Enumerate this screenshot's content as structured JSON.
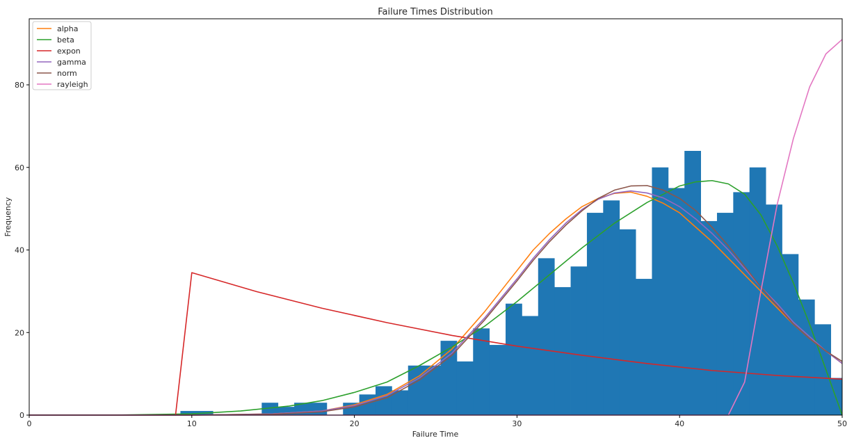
{
  "chart_data": {
    "type": "bar",
    "title": "Failure Times Distribution",
    "xlabel": "Failure Time",
    "ylabel": "Frequency",
    "xlim": [
      0,
      50
    ],
    "ylim": [
      0,
      96
    ],
    "grid": false,
    "legend_placement": "top-left",
    "x_ticks": [
      "0",
      "10",
      "20",
      "30",
      "40",
      "50"
    ],
    "y_ticks": [
      "0",
      "20",
      "40",
      "60",
      "80"
    ],
    "histogram": {
      "color": "#1f77b4",
      "bins": [
        {
          "x0": 9.3,
          "x1": 11.3,
          "count": 1
        },
        {
          "x0": 14.3,
          "x1": 15.3,
          "count": 3
        },
        {
          "x0": 15.3,
          "x1": 16.3,
          "count": 2
        },
        {
          "x0": 16.3,
          "x1": 18.3,
          "count": 3
        },
        {
          "x0": 19.3,
          "x1": 20.3,
          "count": 3
        },
        {
          "x0": 20.3,
          "x1": 21.3,
          "count": 5
        },
        {
          "x0": 21.3,
          "x1": 22.3,
          "count": 7
        },
        {
          "x0": 22.3,
          "x1": 23.3,
          "count": 6
        },
        {
          "x0": 23.3,
          "x1": 25.3,
          "count": 12
        },
        {
          "x0": 25.3,
          "x1": 26.3,
          "count": 18
        },
        {
          "x0": 26.3,
          "x1": 27.3,
          "count": 13
        },
        {
          "x0": 27.3,
          "x1": 28.3,
          "count": 21
        },
        {
          "x0": 28.3,
          "x1": 29.3,
          "count": 17
        },
        {
          "x0": 29.3,
          "x1": 30.3,
          "count": 27
        },
        {
          "x0": 30.3,
          "x1": 31.3,
          "count": 24
        },
        {
          "x0": 31.3,
          "x1": 32.3,
          "count": 38
        },
        {
          "x0": 32.3,
          "x1": 33.3,
          "count": 31
        },
        {
          "x0": 33.3,
          "x1": 34.3,
          "count": 36
        },
        {
          "x0": 34.3,
          "x1": 35.3,
          "count": 49
        },
        {
          "x0": 35.3,
          "x1": 36.3,
          "count": 52
        },
        {
          "x0": 36.3,
          "x1": 37.3,
          "count": 45
        },
        {
          "x0": 37.3,
          "x1": 38.3,
          "count": 33
        },
        {
          "x0": 38.3,
          "x1": 39.3,
          "count": 60
        },
        {
          "x0": 39.3,
          "x1": 40.3,
          "count": 55
        },
        {
          "x0": 40.3,
          "x1": 41.3,
          "count": 64
        },
        {
          "x0": 41.3,
          "x1": 42.3,
          "count": 47
        },
        {
          "x0": 42.3,
          "x1": 43.3,
          "count": 49
        },
        {
          "x0": 43.3,
          "x1": 44.3,
          "count": 54
        },
        {
          "x0": 44.3,
          "x1": 45.3,
          "count": 60
        },
        {
          "x0": 45.3,
          "x1": 46.3,
          "count": 51
        },
        {
          "x0": 46.3,
          "x1": 47.3,
          "count": 39
        },
        {
          "x0": 47.3,
          "x1": 48.3,
          "count": 28
        },
        {
          "x0": 48.3,
          "x1": 49.3,
          "count": 22
        },
        {
          "x0": 49.3,
          "x1": 50.0,
          "count": 9
        }
      ]
    },
    "series": [
      {
        "name": "alpha",
        "color": "#ff7f0e",
        "x": [
          0,
          10,
          15,
          18,
          20,
          22,
          24,
          26,
          28,
          30,
          31,
          32,
          33,
          34,
          35,
          36,
          37,
          38,
          39,
          40,
          41,
          42,
          43,
          44,
          45,
          46,
          47,
          48,
          49,
          50
        ],
        "y": [
          0,
          0,
          0.3,
          1,
          2.5,
          5,
          9.5,
          16,
          25,
          35,
          40,
          44,
          47.5,
          50.5,
          52.5,
          53.7,
          54,
          53,
          51.3,
          49,
          45.5,
          42,
          38,
          34,
          30,
          26,
          22,
          18.5,
          15.5,
          12.5
        ]
      },
      {
        "name": "beta",
        "color": "#2ca02c",
        "x": [
          0,
          5,
          10,
          13,
          16,
          18,
          20,
          22,
          24,
          26,
          28,
          30,
          32,
          34,
          36,
          38,
          40,
          41,
          42,
          43,
          44,
          45,
          46,
          47,
          48,
          49,
          50
        ],
        "y": [
          0,
          0,
          0.3,
          1,
          2.2,
          3.5,
          5.5,
          8,
          12,
          16.5,
          21.5,
          27.5,
          34,
          40.5,
          46.5,
          51.5,
          55.5,
          56.5,
          56.8,
          56,
          53.5,
          48.5,
          41,
          32,
          22,
          11,
          0
        ]
      },
      {
        "name": "expon",
        "color": "#d62728",
        "x": [
          0,
          9,
          10,
          14,
          18,
          22,
          26,
          30,
          34,
          38,
          42,
          46,
          50
        ],
        "y": [
          0,
          0,
          34.5,
          29.9,
          25.9,
          22.4,
          19.3,
          16.7,
          14.5,
          12.5,
          10.8,
          9.6,
          8.7
        ]
      },
      {
        "name": "gamma",
        "color": "#9467bd",
        "x": [
          0,
          10,
          15,
          18,
          20,
          22,
          24,
          26,
          28,
          30,
          31,
          32,
          33,
          34,
          35,
          36,
          37,
          38,
          39,
          40,
          41,
          42,
          43,
          44,
          45,
          46,
          47,
          48,
          49,
          50
        ],
        "y": [
          0,
          0,
          0.3,
          1,
          2.3,
          4.7,
          9,
          15,
          23.5,
          33,
          38,
          42.5,
          46.5,
          49.8,
          52.3,
          53.8,
          54.3,
          53.8,
          52.6,
          50.5,
          47.5,
          44,
          40,
          35.5,
          31,
          27,
          22.5,
          19,
          15.5,
          12.5
        ]
      },
      {
        "name": "norm",
        "color": "#8c564b",
        "x": [
          0,
          10,
          15,
          18,
          20,
          22,
          24,
          26,
          28,
          30,
          31,
          32,
          33,
          34,
          35,
          36,
          37,
          38,
          39,
          40,
          41,
          42,
          43,
          44,
          45,
          46,
          47,
          48,
          49,
          50
        ],
        "y": [
          0,
          0,
          0.2,
          0.8,
          2,
          4.2,
          8.5,
          14.5,
          23,
          32.5,
          37.5,
          42,
          46,
          49.5,
          52.5,
          54.5,
          55.5,
          55.6,
          54.5,
          52.5,
          49.5,
          45.5,
          41,
          36,
          31,
          26.5,
          22,
          18.5,
          15.5,
          13
        ]
      },
      {
        "name": "rayleigh",
        "color": "#e377c2",
        "x": [
          0,
          43,
          44,
          45,
          46,
          47,
          48,
          49,
          50
        ],
        "y": [
          0,
          0,
          8,
          30,
          51,
          67,
          79.5,
          87.5,
          91
        ]
      }
    ]
  }
}
